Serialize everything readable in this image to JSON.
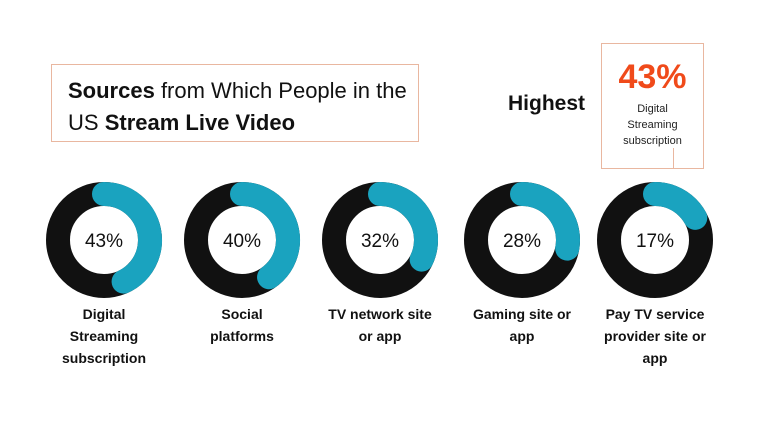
{
  "title": {
    "part1_bold": "Sources",
    "part2": " from Which People in the US ",
    "part3_bold": "Stream Live Video"
  },
  "highest": {
    "label": "Highest",
    "value": "43%",
    "description": "Digital\nStreaming\nsubscription"
  },
  "colors": {
    "ring_track": "#111111",
    "ring_fill": "#1aa3bf",
    "accent": "#f04a1a"
  },
  "chart_data": {
    "type": "pie",
    "subtype": "donut-set",
    "unit": "%",
    "categories": [
      "Digital\nStreaming\nsubscription",
      "Social\nplatforms",
      "TV network site\nor app",
      "Gaming site or\napp",
      "Pay TV service\nprovider site or\napp"
    ],
    "values": [
      43,
      40,
      32,
      28,
      17
    ],
    "value_labels": [
      "43%",
      "40%",
      "32%",
      "28%",
      "17%"
    ]
  }
}
